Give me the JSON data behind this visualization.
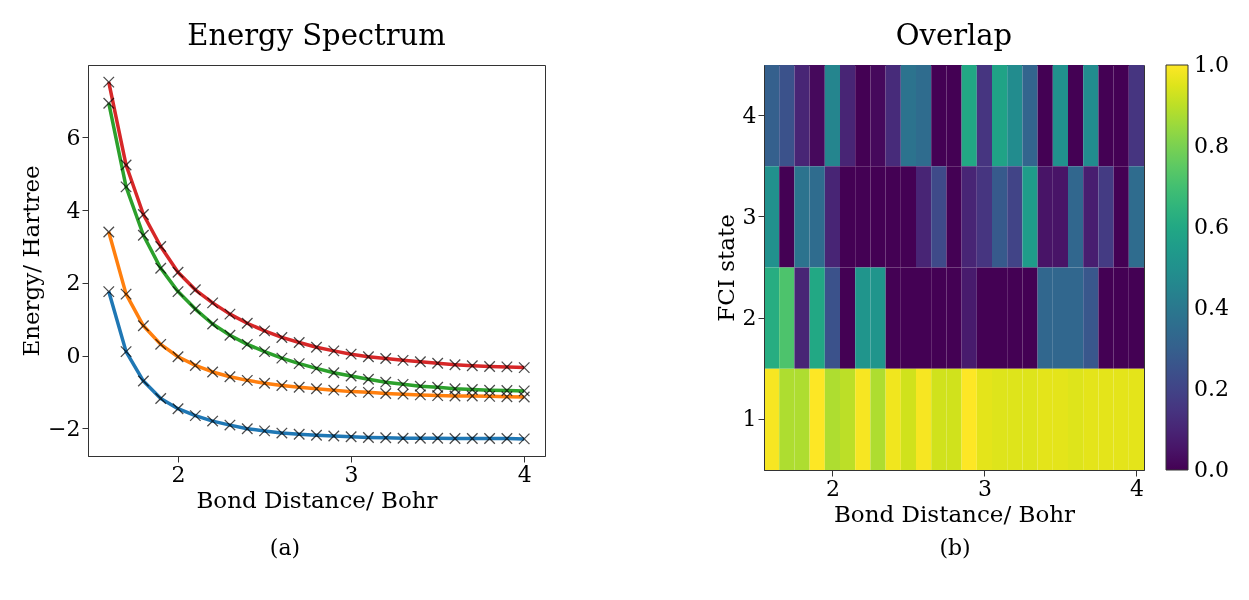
{
  "chart_data": [
    {
      "type": "line",
      "title": "Energy Spectrum",
      "xlabel": "Bond Distance/ Bohr",
      "ylabel": "Energy/ Hartree",
      "annotations": [
        "(a)"
      ],
      "marker": "cross",
      "x": [
        1.6,
        1.7,
        1.8,
        1.9,
        2.0,
        2.1,
        2.2,
        2.3,
        2.4,
        2.5,
        2.6,
        2.7,
        2.8,
        2.9,
        3.0,
        3.1,
        3.2,
        3.3,
        3.4,
        3.5,
        3.6,
        3.7,
        3.8,
        3.9,
        4.0
      ],
      "series": [
        {
          "color": "#1f77b4",
          "values": [
            1.76,
            0.11,
            -0.7,
            -1.18,
            -1.46,
            -1.65,
            -1.8,
            -1.91,
            -2.01,
            -2.07,
            -2.13,
            -2.16,
            -2.19,
            -2.21,
            -2.23,
            -2.25,
            -2.26,
            -2.27,
            -2.27,
            -2.27,
            -2.28,
            -2.28,
            -2.28,
            -2.28,
            -2.29
          ]
        },
        {
          "color": "#ff7f0e",
          "values": [
            3.4,
            1.69,
            0.82,
            0.31,
            -0.03,
            -0.27,
            -0.45,
            -0.58,
            -0.68,
            -0.76,
            -0.82,
            -0.87,
            -0.91,
            -0.95,
            -0.99,
            -1.01,
            -1.04,
            -1.06,
            -1.08,
            -1.1,
            -1.11,
            -1.11,
            -1.12,
            -1.13,
            -1.14
          ]
        },
        {
          "color": "#2ca02c",
          "values": [
            6.94,
            4.64,
            3.31,
            2.4,
            1.76,
            1.28,
            0.87,
            0.56,
            0.31,
            0.11,
            -0.07,
            -0.22,
            -0.35,
            -0.47,
            -0.56,
            -0.65,
            -0.73,
            -0.79,
            -0.84,
            -0.87,
            -0.91,
            -0.93,
            -0.95,
            -0.96,
            -0.97
          ]
        },
        {
          "color": "#d62728",
          "values": [
            7.52,
            5.24,
            3.88,
            3.0,
            2.29,
            1.81,
            1.45,
            1.14,
            0.89,
            0.68,
            0.5,
            0.36,
            0.23,
            0.13,
            0.04,
            -0.03,
            -0.08,
            -0.13,
            -0.17,
            -0.21,
            -0.25,
            -0.28,
            -0.3,
            -0.31,
            -0.33
          ]
        }
      ],
      "xlim": [
        1.48,
        4.12
      ],
      "ylim": [
        -2.76,
        7.99
      ],
      "xticks": [
        2,
        3,
        4
      ],
      "yticks": [
        {
          "value": -2,
          "label": "−2"
        },
        0,
        2,
        4,
        6
      ]
    },
    {
      "type": "heatmap",
      "title": "Overlap",
      "xlabel": "Bond Distance/ Bohr",
      "ylabel": "FCI state",
      "annotations": [
        "(b)"
      ],
      "x": [
        1.6,
        1.7,
        1.8,
        1.9,
        2.0,
        2.1,
        2.2,
        2.3,
        2.4,
        2.5,
        2.6,
        2.7,
        2.8,
        2.9,
        3.0,
        3.1,
        3.2,
        3.3,
        3.4,
        3.5,
        3.6,
        3.7,
        3.8,
        3.9,
        4.0
      ],
      "y_categories": [
        "4",
        "3",
        "2",
        "1"
      ],
      "cells": [
        [
          0.3,
          0.25,
          0.1,
          0.02,
          0.45,
          0.1,
          0.0,
          0.02,
          0.12,
          0.38,
          0.35,
          0.0,
          0.0,
          0.6,
          0.15,
          0.58,
          0.48,
          0.32,
          0.0,
          0.5,
          0.0,
          0.48,
          0.0,
          0.0,
          0.15
        ],
        [
          0.5,
          0.0,
          0.38,
          0.35,
          0.1,
          0.0,
          0.0,
          0.0,
          0.0,
          0.0,
          0.1,
          0.22,
          0.0,
          0.1,
          0.15,
          0.28,
          0.2,
          0.55,
          0.05,
          0.05,
          0.33,
          0.08,
          0.17,
          0.0,
          0.35
        ],
        [
          0.62,
          0.72,
          0.1,
          0.6,
          0.25,
          0.0,
          0.52,
          0.52,
          0.0,
          0.0,
          0.0,
          0.0,
          0.0,
          0.07,
          0.0,
          0.0,
          0.0,
          0.0,
          0.33,
          0.33,
          0.33,
          0.27,
          0.0,
          0.0,
          0.0
        ],
        [
          0.99,
          0.88,
          0.88,
          1.0,
          0.88,
          0.9,
          0.99,
          0.88,
          0.98,
          0.93,
          0.99,
          0.93,
          0.93,
          1.0,
          0.96,
          0.95,
          0.95,
          0.95,
          0.96,
          0.96,
          0.95,
          0.96,
          0.96,
          0.96,
          0.96
        ]
      ],
      "xlim": [
        1.55,
        4.05
      ],
      "xticks": [
        2,
        3,
        4
      ],
      "clim": [
        0,
        1
      ],
      "cticks": [
        {
          "value": 0,
          "label": "0.0"
        },
        0.2,
        0.4,
        0.6,
        0.8,
        {
          "value": 1,
          "label": "1.0"
        }
      ]
    }
  ]
}
